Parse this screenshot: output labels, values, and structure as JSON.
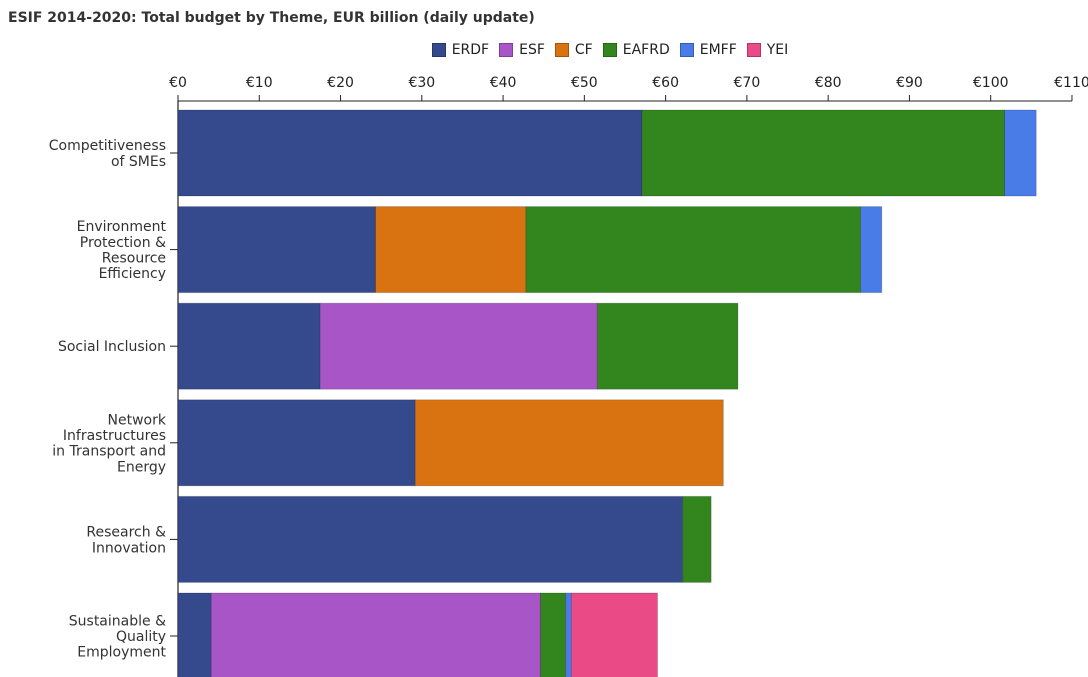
{
  "chart_data": {
    "type": "bar",
    "orientation": "horizontal",
    "stacked": true,
    "title": "ESIF 2014-2020: Total budget by Theme, EUR billion (daily update)",
    "xlim": [
      0,
      110
    ],
    "x_ticks": [
      0,
      10,
      20,
      30,
      40,
      50,
      60,
      70,
      80,
      90,
      100,
      110
    ],
    "x_tick_labels": [
      "€0",
      "€10",
      "€20",
      "€30",
      "€40",
      "€50",
      "€60",
      "€70",
      "€80",
      "€90",
      "€100",
      "€110"
    ],
    "x_axis_position": "top",
    "grid": false,
    "legend_position": "top",
    "categories": [
      [
        "Competitiveness",
        "of SMEs"
      ],
      [
        "Environment",
        "Protection &",
        "Resource",
        "Efficiency"
      ],
      [
        "Social Inclusion"
      ],
      [
        "Network",
        "Infrastructures",
        "in Transport and",
        "Energy"
      ],
      [
        "Research &",
        "Innovation"
      ],
      [
        "Sustainable &",
        "Quality",
        "Employment"
      ]
    ],
    "series": [
      {
        "name": "ERDF",
        "color": "#354a8c",
        "values": [
          57.1,
          24.3,
          17.5,
          29.2,
          62.1,
          4.1
        ]
      },
      {
        "name": "ESF",
        "color": "#a855c8",
        "values": [
          0,
          0,
          34.1,
          0,
          0,
          40.5
        ]
      },
      {
        "name": "CF",
        "color": "#d97211",
        "values": [
          0,
          18.5,
          0,
          37.9,
          0,
          0
        ]
      },
      {
        "name": "EAFRD",
        "color": "#33861e",
        "values": [
          44.6,
          41.2,
          17.3,
          0,
          3.5,
          3.1
        ]
      },
      {
        "name": "EMFF",
        "color": "#4a7ce8",
        "values": [
          3.9,
          2.6,
          0,
          0,
          0,
          0.7
        ]
      },
      {
        "name": "YEI",
        "color": "#ea4a86",
        "values": [
          0,
          0,
          0,
          0,
          0,
          10.6
        ]
      }
    ]
  }
}
